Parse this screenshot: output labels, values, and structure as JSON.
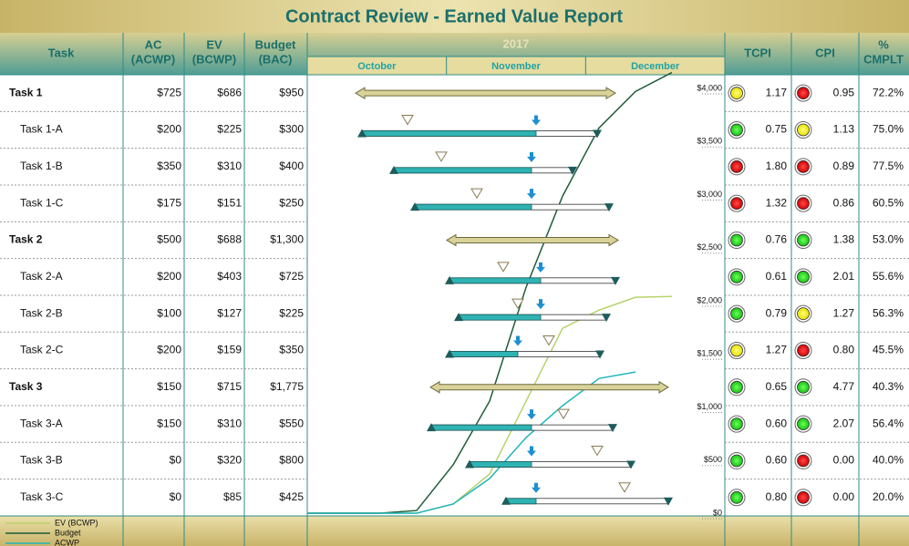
{
  "title": "Contract Review - Earned Value Report",
  "header": {
    "columns": [
      [
        "Task"
      ],
      [
        "AC",
        "(ACWP)"
      ],
      [
        "EV",
        "(BCWP)"
      ],
      [
        "Budget",
        "(BAC)"
      ],
      [
        "TCPI"
      ],
      [
        "CPI"
      ],
      [
        "%",
        "CMPLT"
      ]
    ],
    "year": "2017",
    "months": [
      "October",
      "November",
      "December"
    ]
  },
  "table": {
    "rows": [
      {
        "summary": true,
        "task": "Task 1",
        "ac": "$725",
        "ev": "$686",
        "budget": "$950",
        "tcpi": "1.17",
        "tcpi_status": "yellow",
        "cpi": "0.95",
        "cpi_status": "red",
        "cmplt": "72.2%"
      },
      {
        "summary": false,
        "task": "Task 1-A",
        "ac": "$200",
        "ev": "$225",
        "budget": "$300",
        "tcpi": "0.75",
        "tcpi_status": "green",
        "cpi": "1.13",
        "cpi_status": "yellow",
        "cmplt": "75.0%"
      },
      {
        "summary": false,
        "task": "Task 1-B",
        "ac": "$350",
        "ev": "$310",
        "budget": "$400",
        "tcpi": "1.80",
        "tcpi_status": "red",
        "cpi": "0.89",
        "cpi_status": "red",
        "cmplt": "77.5%"
      },
      {
        "summary": false,
        "task": "Task 1-C",
        "ac": "$175",
        "ev": "$151",
        "budget": "$250",
        "tcpi": "1.32",
        "tcpi_status": "red",
        "cpi": "0.86",
        "cpi_status": "red",
        "cmplt": "60.5%"
      },
      {
        "summary": true,
        "task": "Task 2",
        "ac": "$500",
        "ev": "$688",
        "budget": "$1,300",
        "tcpi": "0.76",
        "tcpi_status": "green",
        "cpi": "1.38",
        "cpi_status": "green",
        "cmplt": "53.0%"
      },
      {
        "summary": false,
        "task": "Task 2-A",
        "ac": "$200",
        "ev": "$403",
        "budget": "$725",
        "tcpi": "0.61",
        "tcpi_status": "green",
        "cpi": "2.01",
        "cpi_status": "green",
        "cmplt": "55.6%"
      },
      {
        "summary": false,
        "task": "Task 2-B",
        "ac": "$100",
        "ev": "$127",
        "budget": "$225",
        "tcpi": "0.79",
        "tcpi_status": "green",
        "cpi": "1.27",
        "cpi_status": "yellow",
        "cmplt": "56.3%"
      },
      {
        "summary": false,
        "task": "Task 2-C",
        "ac": "$200",
        "ev": "$159",
        "budget": "$350",
        "tcpi": "1.27",
        "tcpi_status": "yellow",
        "cpi": "0.80",
        "cpi_status": "red",
        "cmplt": "45.5%"
      },
      {
        "summary": true,
        "task": "Task 3",
        "ac": "$150",
        "ev": "$715",
        "budget": "$1,775",
        "tcpi": "0.65",
        "tcpi_status": "green",
        "cpi": "4.77",
        "cpi_status": "green",
        "cmplt": "40.3%"
      },
      {
        "summary": false,
        "task": "Task 3-A",
        "ac": "$150",
        "ev": "$310",
        "budget": "$550",
        "tcpi": "0.60",
        "tcpi_status": "green",
        "cpi": "2.07",
        "cpi_status": "green",
        "cmplt": "56.4%"
      },
      {
        "summary": false,
        "task": "Task 3-B",
        "ac": "$0",
        "ev": "$320",
        "budget": "$800",
        "tcpi": "0.60",
        "tcpi_status": "green",
        "cpi": "0.00",
        "cpi_status": "red",
        "cmplt": "40.0%"
      },
      {
        "summary": false,
        "task": "Task 3-C",
        "ac": "$0",
        "ev": "$85",
        "budget": "$425",
        "tcpi": "0.80",
        "tcpi_status": "green",
        "cpi": "0.00",
        "cpi_status": "red",
        "cmplt": "20.0%"
      }
    ]
  },
  "chart_data": {
    "type": "line",
    "ylim": [
      0,
      4000
    ],
    "yticks": [
      {
        "value": 0,
        "label": "$0"
      },
      {
        "value": 500,
        "label": "$500"
      },
      {
        "value": 1000,
        "label": "$1,000"
      },
      {
        "value": 1500,
        "label": "$1,500"
      },
      {
        "value": 2000,
        "label": "$2,000"
      },
      {
        "value": 2500,
        "label": "$2,500"
      },
      {
        "value": 3000,
        "label": "$3,000"
      },
      {
        "value": 3500,
        "label": "$3,500"
      },
      {
        "value": 4000,
        "label": "$4,000"
      }
    ],
    "series": [
      {
        "name": "EV (BCWP)",
        "color": "#b7d36c",
        "values": [
          0,
          0,
          0,
          0,
          86,
          369,
          1055,
          1741,
          1912,
          2033,
          2041
        ]
      },
      {
        "name": "Budget",
        "color": "#1f5c3a",
        "values": [
          0,
          0,
          0,
          25,
          455,
          1055,
          2127,
          2985,
          3628,
          3971,
          4150
        ]
      },
      {
        "name": "ACWP",
        "color": "#22b5bb",
        "values": [
          0,
          0,
          0,
          0,
          86,
          326,
          712,
          1012,
          1269,
          1329,
          null
        ]
      }
    ]
  }
}
